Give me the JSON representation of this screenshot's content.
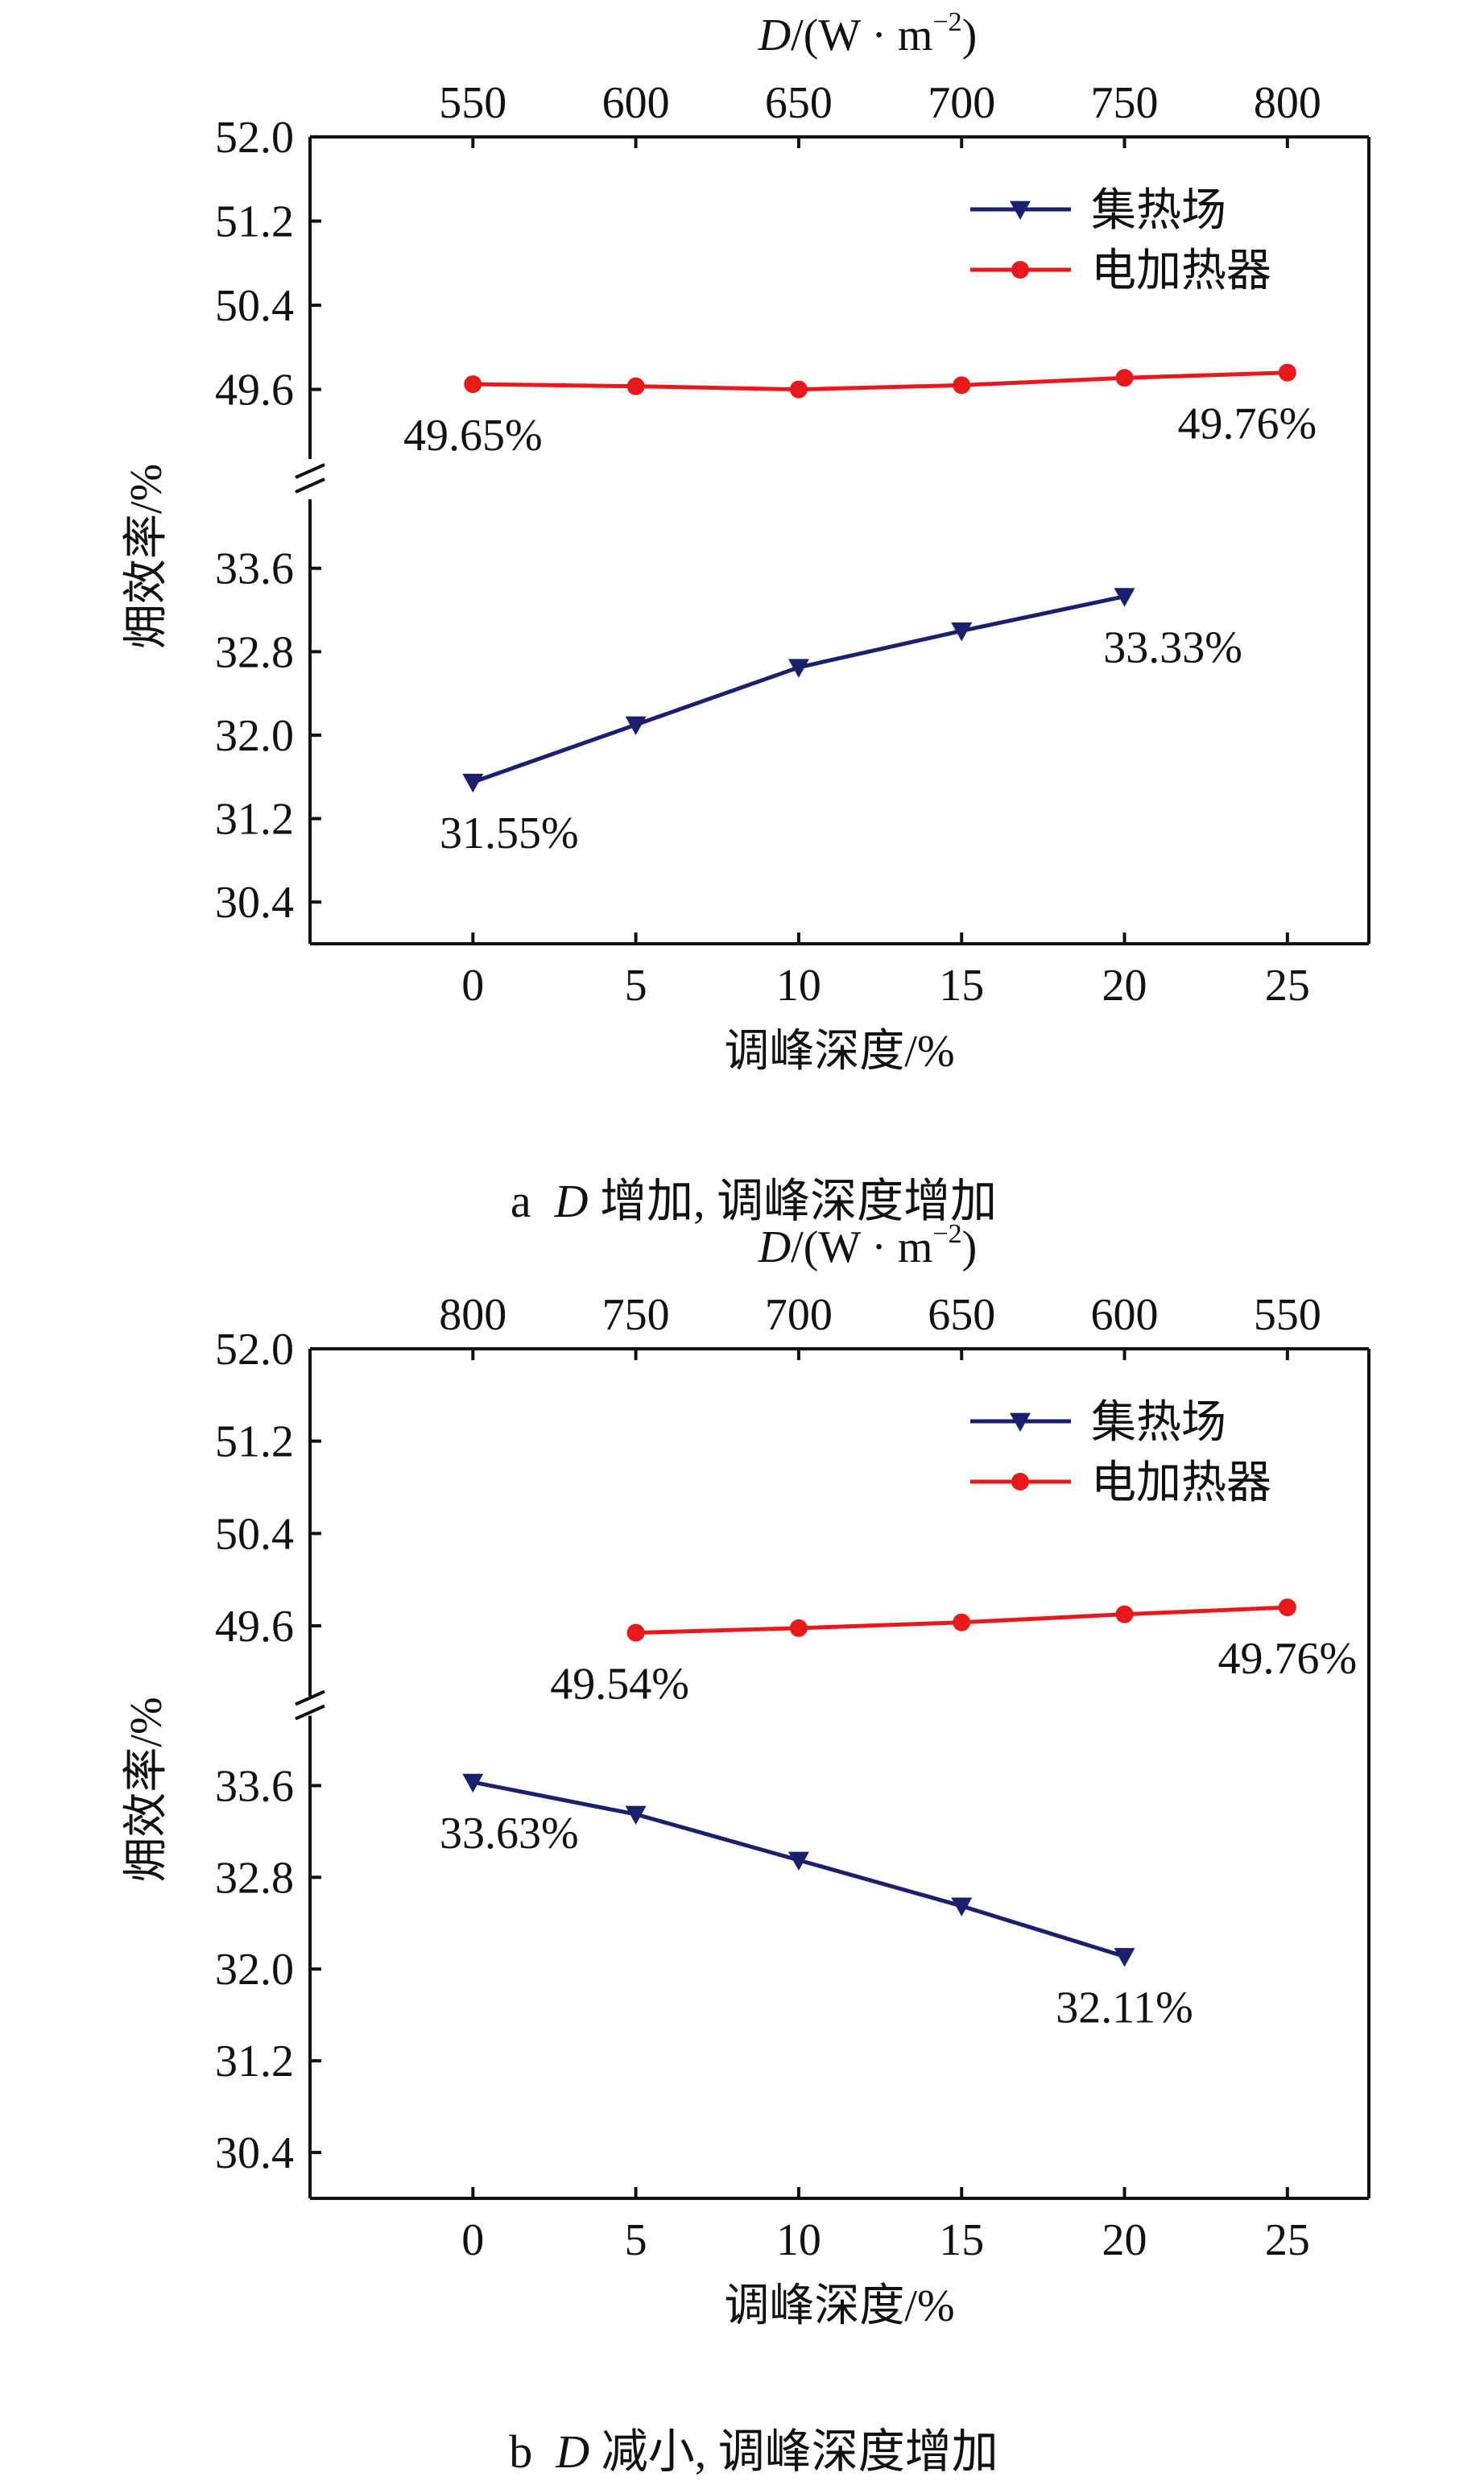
{
  "chart_data": [
    {
      "type": "line",
      "caption": {
        "letter": "a",
        "var": "D",
        "text": "增加, 调峰深度增加"
      },
      "xlabel": "调峰深度/%",
      "x_ticks": [
        0,
        5,
        10,
        15,
        20,
        25
      ],
      "xlim": [
        -5,
        27.5
      ],
      "top_axis": {
        "label_var": "D",
        "label_rest": "/(W · m",
        "label_sup": "−2",
        "label_close": ")",
        "ticks": [
          "550",
          "600",
          "650",
          "700",
          "750",
          "800"
        ]
      },
      "ylabel": "㶲效率/%",
      "y_ticks": [
        "52.0",
        "51.2",
        "50.4",
        "49.6",
        "33.6",
        "32.8",
        "32.0",
        "31.2",
        "30.4"
      ],
      "y_upper_range": [
        49.2,
        52.0
      ],
      "y_lower_range": [
        30.0,
        34.0
      ],
      "legend": "top-right",
      "series": [
        {
          "name": "集热场",
          "color": "#1a1f6e",
          "marker": "triangle-down",
          "axis_segment": "lower",
          "x": [
            0,
            5,
            10,
            15,
            20
          ],
          "y": [
            31.55,
            32.1,
            32.65,
            33.0,
            33.33
          ]
        },
        {
          "name": "电加热器",
          "color": "#e8191b",
          "marker": "circle",
          "axis_segment": "upper",
          "x": [
            0,
            5,
            10,
            15,
            20,
            25
          ],
          "y": [
            49.65,
            49.63,
            49.6,
            49.64,
            49.71,
            49.76
          ]
        }
      ],
      "annotations": [
        {
          "text": "49.65%",
          "series": 1,
          "point": 0,
          "anchor": "below"
        },
        {
          "text": "49.76%",
          "series": 1,
          "point": 5,
          "anchor": "below"
        },
        {
          "text": "31.55%",
          "series": 0,
          "point": 0,
          "anchor": "below"
        },
        {
          "text": "33.33%",
          "series": 0,
          "point": 4,
          "anchor": "below"
        }
      ]
    },
    {
      "type": "line",
      "caption": {
        "letter": "b",
        "var": "D",
        "text": "减小, 调峰深度增加"
      },
      "xlabel": "调峰深度/%",
      "x_ticks": [
        0,
        5,
        10,
        15,
        20,
        25
      ],
      "xlim": [
        -5,
        27.5
      ],
      "top_axis": {
        "label_var": "D",
        "label_rest": "/(W · m",
        "label_sup": "−2",
        "label_close": ")",
        "ticks": [
          "800",
          "750",
          "700",
          "650",
          "600",
          "550"
        ]
      },
      "ylabel": "㶲效率/%",
      "y_ticks": [
        "52.0",
        "51.2",
        "50.4",
        "49.6",
        "33.6",
        "32.8",
        "32.0",
        "31.2",
        "30.4"
      ],
      "y_upper_range": [
        49.2,
        52.0
      ],
      "y_lower_range": [
        30.0,
        34.0
      ],
      "legend": "top-right",
      "series": [
        {
          "name": "集热场",
          "color": "#1a1f6e",
          "marker": "triangle-down",
          "axis_segment": "lower",
          "x": [
            0,
            5,
            10,
            15,
            20
          ],
          "y": [
            33.63,
            33.35,
            32.95,
            32.55,
            32.11
          ]
        },
        {
          "name": "电加热器",
          "color": "#e8191b",
          "marker": "circle",
          "axis_segment": "upper",
          "x": [
            5,
            10,
            15,
            20,
            25
          ],
          "y": [
            49.54,
            49.58,
            49.63,
            49.7,
            49.76
          ]
        }
      ],
      "annotations": [
        {
          "text": "49.54%",
          "series": 1,
          "point": 0,
          "anchor": "below"
        },
        {
          "text": "49.76%",
          "series": 1,
          "point": 4,
          "anchor": "below"
        },
        {
          "text": "33.63%",
          "series": 0,
          "point": 0,
          "anchor": "below"
        },
        {
          "text": "32.11%",
          "series": 0,
          "point": 4,
          "anchor": "below"
        }
      ]
    }
  ]
}
